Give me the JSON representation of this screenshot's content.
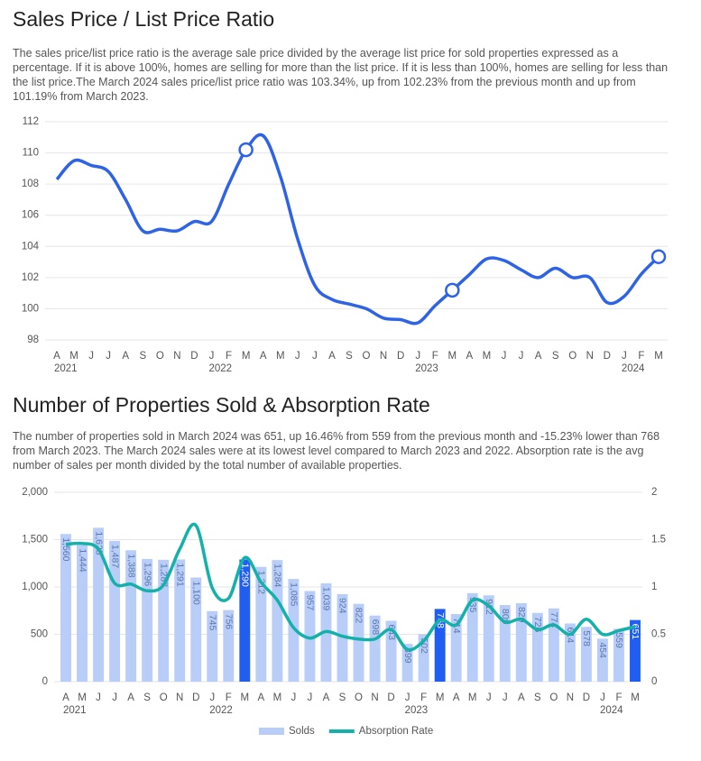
{
  "chart_data": [
    {
      "type": "line",
      "title": "Sales Price / List Price Ratio",
      "subtitle": "The sales price/list price ratio is the average sale price divided by the average list price for sold properties expressed as a percentage. If it is above 100%, homes are selling for more than the list price. If it is less than 100%, homes are selling for less than the list price.The March 2024 sales price/list price ratio was 103.34%, up from 102.23% from the previous month and up from 101.19% from March 2023.",
      "categories": [
        "A",
        "M",
        "J",
        "J",
        "A",
        "S",
        "O",
        "N",
        "D",
        "J",
        "F",
        "M",
        "A",
        "M",
        "J",
        "J",
        "A",
        "S",
        "O",
        "N",
        "D",
        "J",
        "F",
        "M",
        "A",
        "M",
        "J",
        "J",
        "A",
        "S",
        "O",
        "N",
        "D",
        "J",
        "F",
        "M"
      ],
      "x_groups": [
        {
          "label": "2021",
          "start": 0
        },
        {
          "label": "2022",
          "start": 9
        },
        {
          "label": "2023",
          "start": 21
        },
        {
          "label": "2024",
          "start": 33
        }
      ],
      "series": [
        {
          "name": "Sales Price / List Price Ratio",
          "color": "#2f63e6",
          "values": [
            108.3,
            109.5,
            109.2,
            108.8,
            107.0,
            105.0,
            105.1,
            105.0,
            105.6,
            105.6,
            108.0,
            110.2,
            111.1,
            108.5,
            104.5,
            101.5,
            100.6,
            100.3,
            100.0,
            99.4,
            99.3,
            99.1,
            100.2,
            101.19,
            102.2,
            103.2,
            103.1,
            102.5,
            102.0,
            102.6,
            102.0,
            102.0,
            100.4,
            100.8,
            102.23,
            103.34
          ]
        }
      ],
      "highlight": [
        11,
        23,
        35
      ],
      "ylim": [
        98,
        112
      ],
      "yticks": [
        98,
        100,
        102,
        104,
        106,
        108,
        110,
        112
      ],
      "grid": true
    },
    {
      "type": "bar",
      "title": "Number of Properties Sold & Absorption Rate",
      "subtitle": "The number of properties sold in March 2024 was 651, up 16.46% from 559 from the previous month and -15.23% lower than 768 from March 2023. The March 2024 sales were at its lowest level compared to March 2023 and 2022. Absorption rate is the avg number of sales per month divided by the total number of available properties.",
      "categories": [
        "A",
        "M",
        "J",
        "J",
        "A",
        "S",
        "O",
        "N",
        "D",
        "J",
        "F",
        "M",
        "A",
        "M",
        "J",
        "J",
        "A",
        "S",
        "O",
        "N",
        "D",
        "J",
        "F",
        "M",
        "A",
        "M",
        "J",
        "J",
        "A",
        "S",
        "O",
        "N",
        "D",
        "J",
        "F",
        "M"
      ],
      "x_groups": [
        {
          "label": "2021",
          "start": 0
        },
        {
          "label": "2022",
          "start": 9
        },
        {
          "label": "2023",
          "start": 21
        },
        {
          "label": "2024",
          "start": 33
        }
      ],
      "series": [
        {
          "name": "Solds",
          "type": "bar",
          "color": "#b8cdf7",
          "highlight_color": "#1f5ef0",
          "values": [
            1560,
            1444,
            1625,
            1487,
            1388,
            1296,
            1287,
            1291,
            1100,
            745,
            756,
            1290,
            1212,
            1284,
            1085,
            957,
            1039,
            924,
            822,
            698,
            643,
            399,
            502,
            768,
            714,
            935,
            912,
            809,
            829,
            726,
            774,
            614,
            578,
            454,
            559,
            651
          ],
          "value_labels": [
            "1,560",
            "1,444",
            "1,625",
            "1,487",
            "1,388",
            "1,296",
            "1,287",
            "1,291",
            "1,100",
            "745",
            "756",
            "1,290",
            "1,212",
            "1,284",
            "1,085",
            "957",
            "1,039",
            "924",
            "822",
            "698",
            "643",
            "399",
            "502",
            "768",
            "714",
            "935",
            "912",
            "809",
            "829",
            "726",
            "774",
            "614",
            "578",
            "454",
            "559",
            "651"
          ]
        },
        {
          "name": "Absorption Rate",
          "type": "line",
          "axis": "y2",
          "color": "#14b1aa",
          "values": [
            1.45,
            1.46,
            1.4,
            1.04,
            1.03,
            0.96,
            1.02,
            1.4,
            1.65,
            0.99,
            0.88,
            1.31,
            1.05,
            0.86,
            0.57,
            0.46,
            0.53,
            0.48,
            0.45,
            0.45,
            0.55,
            0.34,
            0.43,
            0.65,
            0.6,
            0.86,
            0.8,
            0.63,
            0.66,
            0.55,
            0.6,
            0.5,
            0.66,
            0.5,
            0.54,
            0.58
          ]
        }
      ],
      "highlight": [
        11,
        23,
        35
      ],
      "ylim": [
        0,
        2000
      ],
      "yticks": [
        0,
        500,
        {
          "value": 1000,
          "label": "1,000"
        },
        {
          "value": 1500,
          "label": "1,500"
        },
        {
          "value": 2000,
          "label": "2,000"
        }
      ],
      "y2lim": [
        0,
        2
      ],
      "y2ticks": [
        0,
        0.5,
        1,
        1.5,
        2
      ],
      "grid": true,
      "legend": "bottom"
    }
  ]
}
